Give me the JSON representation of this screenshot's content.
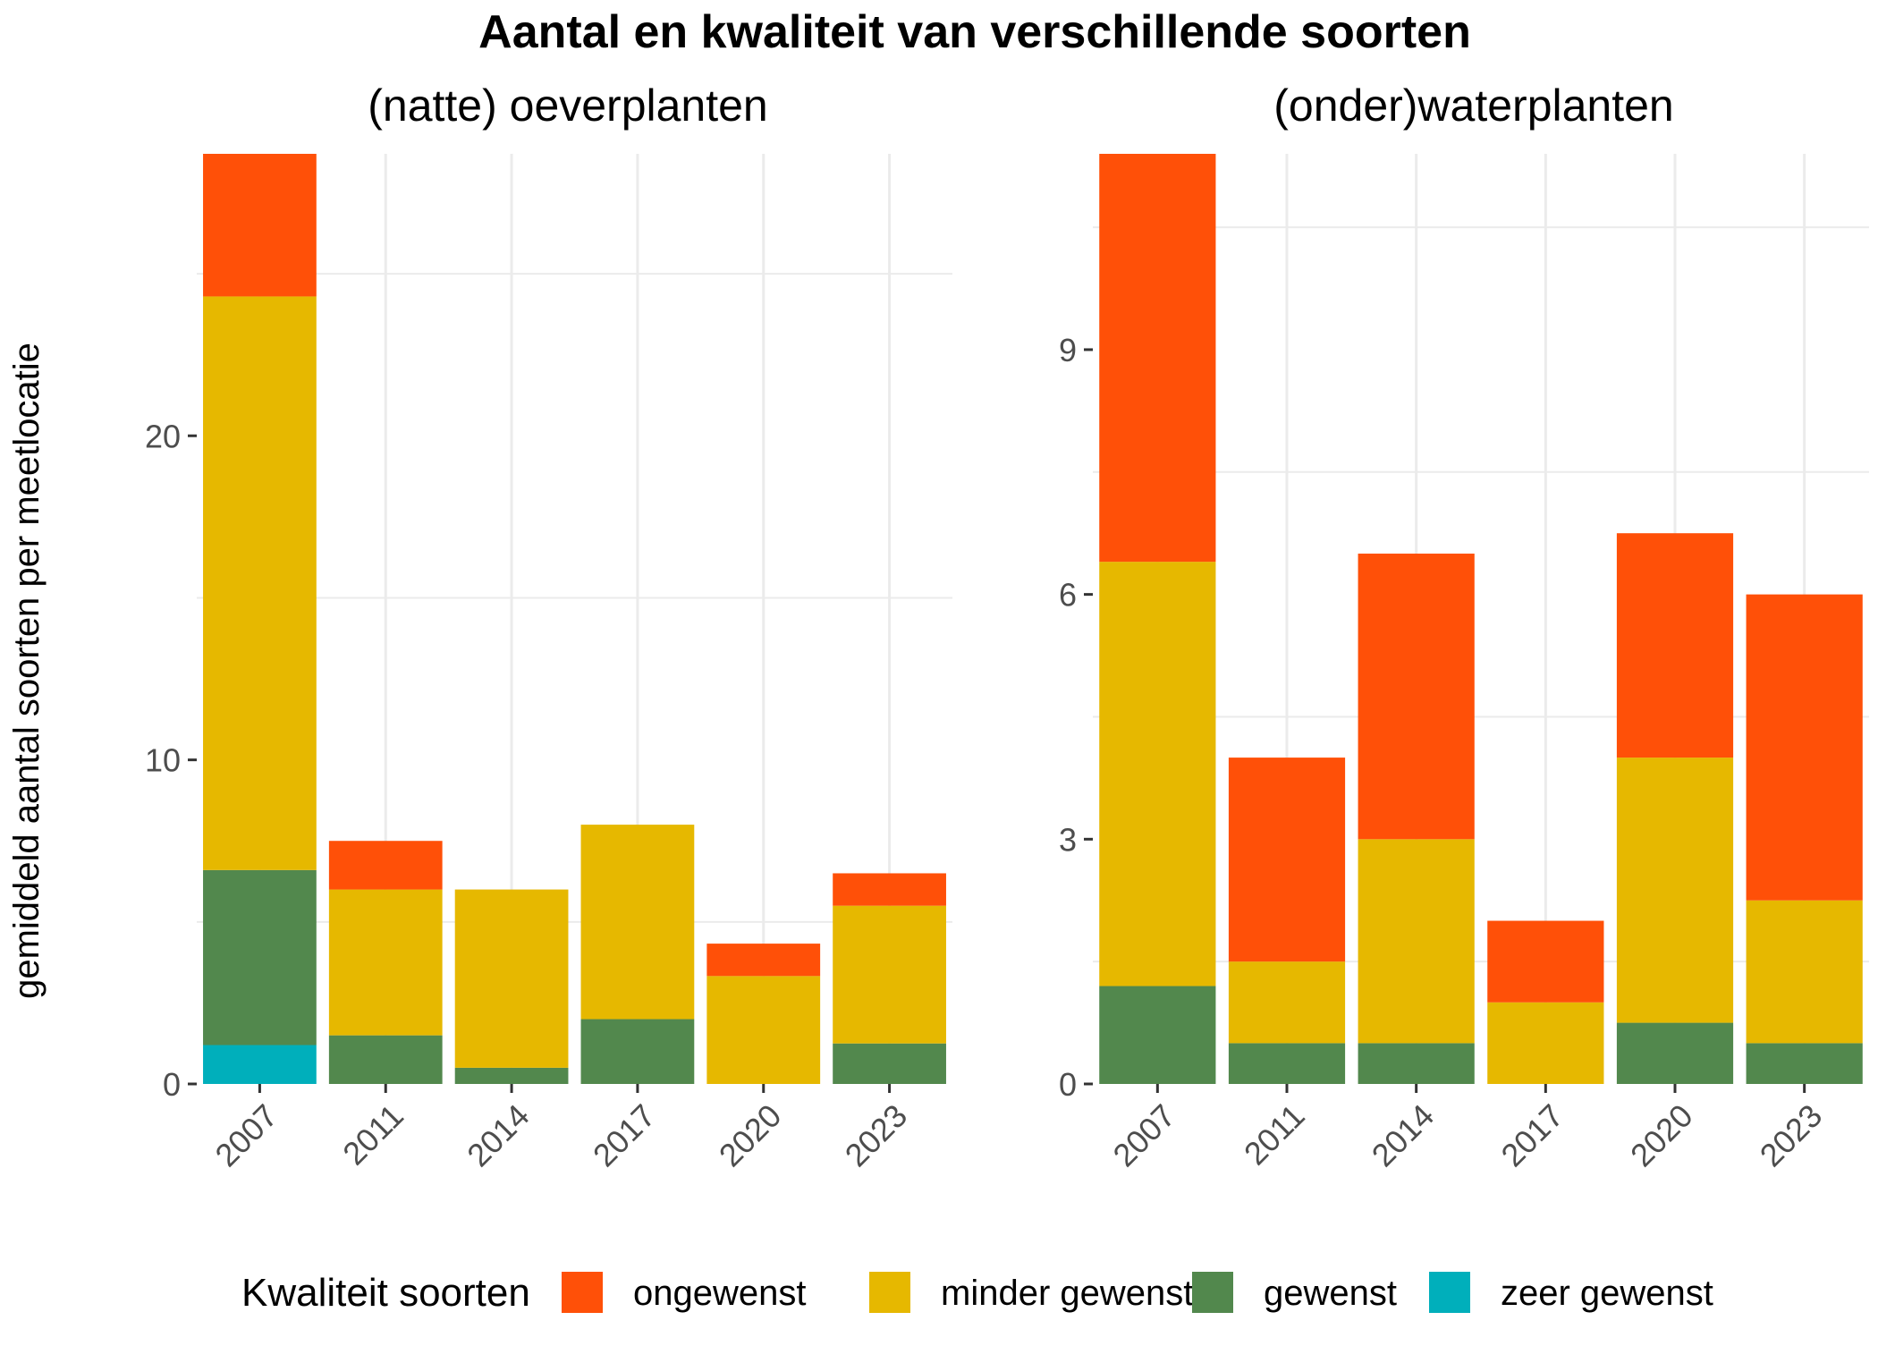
{
  "chart_data": {
    "type": "bar",
    "stacked": true,
    "title": "Aantal en kwaliteit van verschillende soorten",
    "ylabel": "gemiddeld aantal soorten per meetlocatie",
    "legend": {
      "title": "Kwaliteit soorten",
      "placement": "bottom",
      "entries": [
        {
          "name": "ongewenst",
          "color": "#FF5008"
        },
        {
          "name": "minder gewenst",
          "color": "#E6B800"
        },
        {
          "name": "gewenst",
          "color": "#52884D"
        },
        {
          "name": "zeer gewenst",
          "color": "#00AFBB"
        }
      ]
    },
    "panels": [
      {
        "title": "(natte) oeverplanten",
        "categories": [
          "2007",
          "2011",
          "2014",
          "2017",
          "2020",
          "2023"
        ],
        "ylim": [
          0,
          28.7
        ],
        "yticks": [
          0,
          10,
          20
        ],
        "series": [
          {
            "name": "zeer gewenst",
            "values": [
              1.2,
              0,
              0,
              0,
              0,
              0
            ]
          },
          {
            "name": "gewenst",
            "values": [
              5.4,
              1.5,
              0.5,
              2.0,
              0,
              1.25
            ]
          },
          {
            "name": "minder gewenst",
            "values": [
              17.7,
              4.5,
              5.5,
              6.0,
              3.33,
              4.25
            ]
          },
          {
            "name": "ongewenst",
            "values": [
              4.4,
              1.5,
              0,
              0,
              1.0,
              1.0
            ]
          }
        ]
      },
      {
        "title": "(onder)waterplanten",
        "categories": [
          "2007",
          "2011",
          "2014",
          "2017",
          "2020",
          "2023"
        ],
        "ylim": [
          0,
          11.4
        ],
        "yticks": [
          0,
          3,
          6,
          9
        ],
        "series": [
          {
            "name": "zeer gewenst",
            "values": [
              0,
              0,
              0,
              0,
              0,
              0
            ]
          },
          {
            "name": "gewenst",
            "values": [
              1.2,
              0.5,
              0.5,
              0,
              0.75,
              0.5
            ]
          },
          {
            "name": "minder gewenst",
            "values": [
              5.2,
              1.0,
              2.5,
              1.0,
              3.25,
              1.75
            ]
          },
          {
            "name": "ongewenst",
            "values": [
              5.0,
              2.5,
              3.5,
              1.0,
              2.75,
              3.75
            ]
          }
        ]
      }
    ]
  }
}
